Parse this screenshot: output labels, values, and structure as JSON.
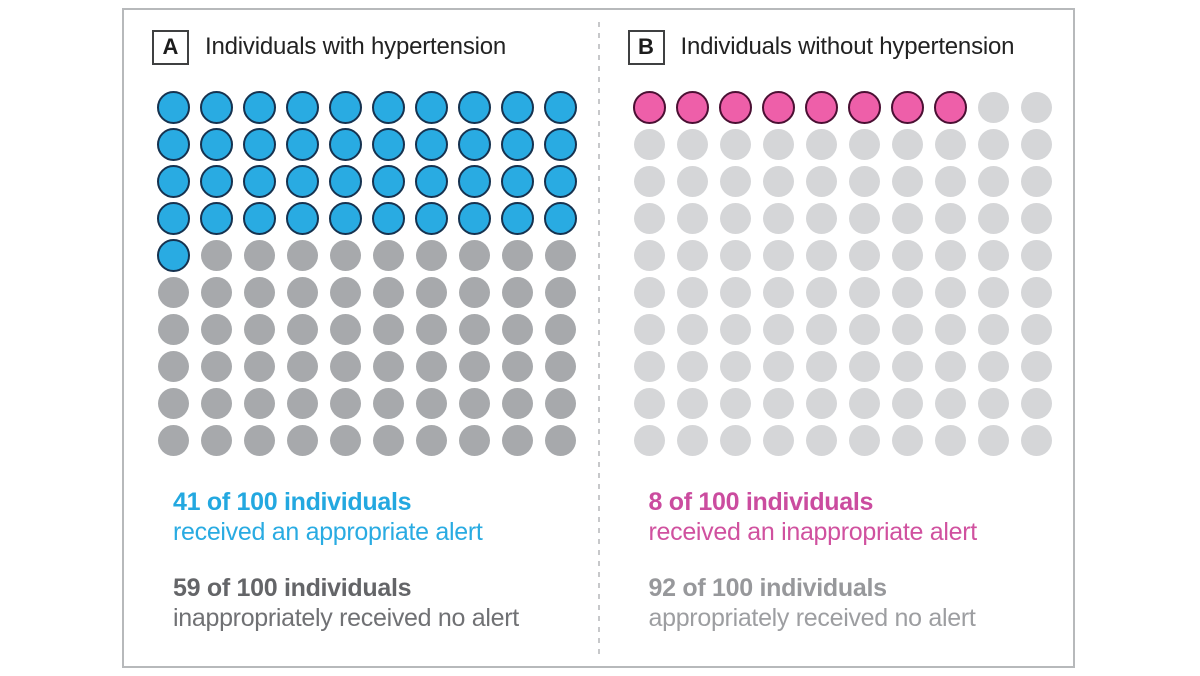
{
  "frame": {
    "border_color": "#b7b9bb",
    "divider_color": "#c7c8ca",
    "divider_style": "dashed-vertical"
  },
  "panels": [
    {
      "label": "A",
      "title": "Individuals with hypertension",
      "dots": {
        "total": 100,
        "columns": 10,
        "highlighted": 41,
        "highlight_fill": "#29ABE2",
        "highlight_stroke": "#16324F",
        "rest_fill": "#A7A9AC"
      },
      "stats": [
        {
          "count": "41 of 100 individuals",
          "desc": "received an appropriate alert",
          "count_color": "#23A8E0",
          "desc_color": "#29ABE2"
        },
        {
          "count": "59 of 100 individuals",
          "desc": "inappropriately received no alert",
          "count_color": "#646568",
          "desc_color": "#707174"
        }
      ]
    },
    {
      "label": "B",
      "title": "Individuals without hypertension",
      "dots": {
        "total": 100,
        "columns": 10,
        "highlighted": 8,
        "highlight_fill": "#EE5FA9",
        "highlight_stroke": "#4A1033",
        "rest_fill": "#D5D6D8"
      },
      "stats": [
        {
          "count": "8 of 100 individuals",
          "desc": "received an inappropriate alert",
          "count_color": "#CB4C9F",
          "desc_color": "#D0519F"
        },
        {
          "count": "92 of 100 individuals",
          "desc": "appropriately received no alert",
          "count_color": "#97989B",
          "desc_color": "#9D9EA1"
        }
      ]
    }
  ],
  "chart_data": {
    "type": "icon_array",
    "note": "waffle / icon-array chart, 1 dot = 1 individual, 10x10 grid per panel, highlighted dots fill left-to-right top-to-bottom",
    "panels": [
      {
        "panel": "A",
        "title": "Individuals with hypertension",
        "total": 100,
        "series": [
          {
            "name": "received an appropriate alert",
            "value": 41,
            "color": "#29ABE2"
          },
          {
            "name": "inappropriately received no alert",
            "value": 59,
            "color": "#A7A9AC"
          }
        ]
      },
      {
        "panel": "B",
        "title": "Individuals without hypertension",
        "total": 100,
        "series": [
          {
            "name": "received an inappropriate alert",
            "value": 8,
            "color": "#EE5FA9"
          },
          {
            "name": "appropriately received no alert",
            "value": 92,
            "color": "#D5D6D8"
          }
        ]
      }
    ]
  }
}
